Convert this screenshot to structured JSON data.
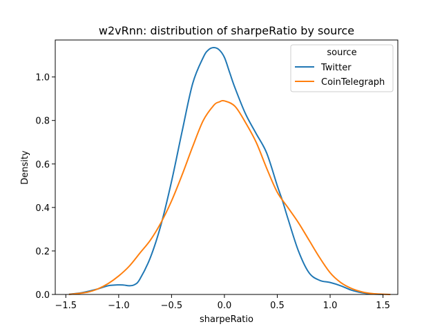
{
  "chart_data": {
    "type": "line",
    "title": "w2vRnn: distribution of sharpeRatio by source",
    "xlabel": "sharpeRatio",
    "ylabel": "Density",
    "xlim": [
      -1.6,
      1.64
    ],
    "ylim": [
      0,
      1.17
    ],
    "xticks": [
      -1.5,
      -1.0,
      -0.5,
      0.0,
      0.5,
      1.0,
      1.5
    ],
    "xtick_labels": [
      "−1.5",
      "−1.0",
      "−0.5",
      "0.0",
      "0.5",
      "1.0",
      "1.5"
    ],
    "yticks": [
      0.0,
      0.2,
      0.4,
      0.6,
      0.8,
      1.0
    ],
    "ytick_labels": [
      "0.0",
      "0.2",
      "0.4",
      "0.6",
      "0.8",
      "1.0"
    ],
    "grid": false,
    "legend": {
      "title": "source",
      "placement": "top-right"
    },
    "series": [
      {
        "name": "Twitter",
        "color": "#1f77b4",
        "x": [
          -1.47,
          -1.35,
          -1.2,
          -1.1,
          -1.0,
          -0.95,
          -0.9,
          -0.85,
          -0.8,
          -0.7,
          -0.6,
          -0.5,
          -0.4,
          -0.3,
          -0.2,
          -0.15,
          -0.1,
          -0.05,
          0.0,
          0.05,
          0.1,
          0.2,
          0.3,
          0.4,
          0.5,
          0.55,
          0.6,
          0.7,
          0.8,
          0.9,
          1.0,
          1.1,
          1.2,
          1.3,
          1.4,
          1.5
        ],
        "y": [
          0.001,
          0.008,
          0.025,
          0.04,
          0.044,
          0.043,
          0.04,
          0.045,
          0.07,
          0.17,
          0.32,
          0.52,
          0.75,
          0.97,
          1.09,
          1.125,
          1.135,
          1.125,
          1.09,
          1.02,
          0.95,
          0.83,
          0.74,
          0.65,
          0.5,
          0.43,
          0.35,
          0.2,
          0.1,
          0.065,
          0.055,
          0.04,
          0.02,
          0.008,
          0.002,
          0.0
        ]
      },
      {
        "name": "CoinTelegraph",
        "color": "#ff7f0e",
        "x": [
          -1.47,
          -1.3,
          -1.2,
          -1.1,
          -1.0,
          -0.9,
          -0.8,
          -0.7,
          -0.6,
          -0.5,
          -0.4,
          -0.3,
          -0.2,
          -0.1,
          -0.05,
          0.0,
          0.1,
          0.2,
          0.3,
          0.4,
          0.5,
          0.6,
          0.7,
          0.8,
          0.9,
          1.0,
          1.1,
          1.2,
          1.3,
          1.4,
          1.5,
          1.57
        ],
        "y": [
          0.0,
          0.01,
          0.025,
          0.05,
          0.085,
          0.13,
          0.19,
          0.25,
          0.33,
          0.43,
          0.55,
          0.68,
          0.8,
          0.87,
          0.885,
          0.89,
          0.865,
          0.79,
          0.7,
          0.58,
          0.47,
          0.4,
          0.33,
          0.25,
          0.17,
          0.1,
          0.055,
          0.028,
          0.012,
          0.004,
          0.001,
          0.0
        ]
      }
    ]
  }
}
